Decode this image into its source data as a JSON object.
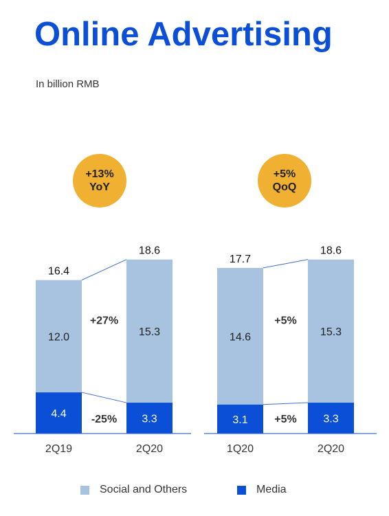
{
  "title": "Online Advertising",
  "subtitle": "In billion RMB",
  "colors": {
    "social": "#a7c3e0",
    "media": "#0b4fd6",
    "badge": "#f0b031",
    "title": "#0b4fd6",
    "connector": "#3f6fc8"
  },
  "legend": {
    "social": "Social and Others",
    "media": "Media"
  },
  "chart_data": [
    {
      "type": "bar",
      "stacked": true,
      "categories": [
        "2Q19",
        "2Q20"
      ],
      "series": [
        {
          "name": "Media",
          "values": [
            4.4,
            3.3
          ]
        },
        {
          "name": "Social and Others",
          "values": [
            12.0,
            15.3
          ]
        }
      ],
      "totals": [
        16.4,
        18.6
      ],
      "totals_text": [
        "16.4",
        "18.6"
      ],
      "media_text": [
        "4.4",
        "3.3"
      ],
      "social_text": [
        "12.0",
        "15.3"
      ],
      "changes": {
        "social": "+27%",
        "media": "-25%"
      },
      "badge": [
        "+13%",
        "YoY"
      ],
      "ylim": [
        0,
        19
      ]
    },
    {
      "type": "bar",
      "stacked": true,
      "categories": [
        "1Q20",
        "2Q20"
      ],
      "series": [
        {
          "name": "Media",
          "values": [
            3.1,
            3.3
          ]
        },
        {
          "name": "Social and Others",
          "values": [
            14.6,
            15.3
          ]
        }
      ],
      "totals": [
        17.7,
        18.6
      ],
      "totals_text": [
        "17.7",
        "18.6"
      ],
      "media_text": [
        "3.1",
        "3.3"
      ],
      "social_text": [
        "14.6",
        "15.3"
      ],
      "changes": {
        "social": "+5%",
        "media": "+5%"
      },
      "badge": [
        "+5%",
        "QoQ"
      ],
      "ylim": [
        0,
        19
      ]
    }
  ]
}
